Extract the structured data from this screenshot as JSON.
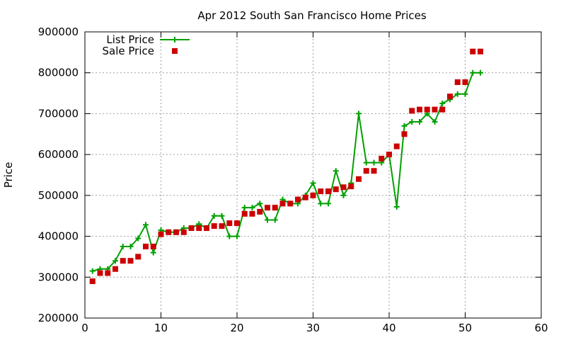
{
  "chart_data": {
    "type": "line",
    "title": "Apr 2012 South San Francisco Home Prices",
    "xlabel": "",
    "ylabel": "Price",
    "xlim": [
      0,
      60
    ],
    "ylim": [
      200000,
      900000
    ],
    "xticks": [
      0,
      10,
      20,
      30,
      40,
      50,
      60
    ],
    "yticks": [
      200000,
      300000,
      400000,
      500000,
      600000,
      700000,
      800000,
      900000
    ],
    "grid": true,
    "legend_position": "top-left",
    "series": [
      {
        "name": "List Price",
        "style": "line-with-plus-markers",
        "color": "#00a000",
        "x": [
          1,
          2,
          3,
          4,
          5,
          6,
          7,
          8,
          9,
          10,
          11,
          12,
          13,
          14,
          15,
          16,
          17,
          18,
          19,
          20,
          21,
          22,
          23,
          24,
          25,
          26,
          27,
          28,
          29,
          30,
          31,
          32,
          33,
          34,
          35,
          36,
          37,
          38,
          39,
          40,
          41,
          42,
          43,
          44,
          45,
          46,
          47,
          48,
          49,
          50,
          51,
          52
        ],
        "values": [
          315000,
          320000,
          320000,
          340000,
          375000,
          375000,
          395000,
          428000,
          360000,
          415000,
          410000,
          410000,
          420000,
          420000,
          430000,
          420000,
          450000,
          450000,
          400000,
          400000,
          470000,
          470000,
          480000,
          440000,
          440000,
          490000,
          480000,
          480000,
          500000,
          530000,
          480000,
          480000,
          560000,
          500000,
          530000,
          700000,
          580000,
          580000,
          580000,
          600000,
          472000,
          670000,
          680000,
          680000,
          700000,
          680000,
          725000,
          735000,
          748000,
          748000,
          800000,
          800000
        ]
      },
      {
        "name": "Sale Price",
        "style": "points-squares",
        "color": "#cc0000",
        "x": [
          1,
          2,
          3,
          4,
          5,
          6,
          7,
          8,
          9,
          10,
          11,
          12,
          13,
          14,
          15,
          16,
          17,
          18,
          19,
          20,
          21,
          22,
          23,
          24,
          25,
          26,
          27,
          28,
          29,
          30,
          31,
          32,
          33,
          34,
          35,
          36,
          37,
          38,
          39,
          40,
          41,
          42,
          43,
          44,
          45,
          46,
          47,
          48,
          49,
          50,
          51,
          52
        ],
        "values": [
          290000,
          310000,
          310000,
          320000,
          340000,
          340000,
          350000,
          375000,
          375000,
          405000,
          410000,
          410000,
          410000,
          420000,
          420000,
          420000,
          425000,
          425000,
          432000,
          432000,
          455000,
          455000,
          460000,
          470000,
          470000,
          480000,
          480000,
          490000,
          495000,
          500000,
          510000,
          510000,
          515000,
          520000,
          522000,
          540000,
          560000,
          560000,
          590000,
          600000,
          620000,
          650000,
          707000,
          710000,
          710000,
          710000,
          710000,
          742000,
          777000,
          777000,
          852000,
          852000
        ]
      }
    ]
  }
}
